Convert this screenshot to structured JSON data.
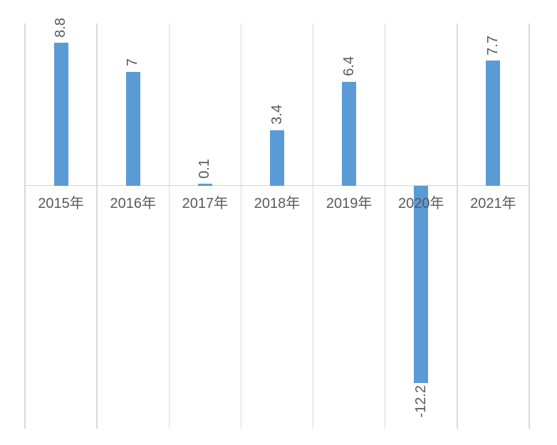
{
  "chart_data": {
    "type": "bar",
    "title": "",
    "xlabel": "",
    "ylabel": "",
    "categories": [
      "2015年",
      "2016年",
      "2017年",
      "2018年",
      "2019年",
      "2020年",
      "2021年"
    ],
    "series": [
      {
        "name": "",
        "values": [
          8.8,
          7,
          0.1,
          3.4,
          6.4,
          -12.2,
          7.7
        ]
      }
    ],
    "data_labels": [
      "8.8",
      "7",
      "0.1",
      "3.4",
      "6.4",
      "-12.2",
      "7.7"
    ],
    "data_label_rotation_deg": -90,
    "ylim": [
      -15,
      10
    ],
    "legend": "none",
    "grid": "vertical-category-separators",
    "axis_line": "zero-baseline",
    "colors": {
      "bar": "#5B9BD5",
      "gridline": "#D9D9D9",
      "axis_line": "#D6D6D6",
      "label_text": "#595959",
      "background": "#FFFFFF"
    }
  }
}
